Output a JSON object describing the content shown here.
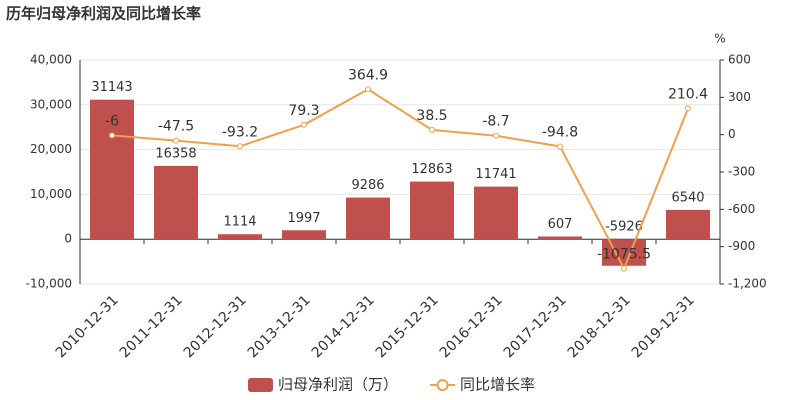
{
  "chart_data": {
    "type": "bar",
    "title": "历年归母净利润及同比增长率",
    "categories": [
      "2010-12-31",
      "2011-12-31",
      "2012-12-31",
      "2013-12-31",
      "2014-12-31",
      "2015-12-31",
      "2016-12-31",
      "2017-12-31",
      "2018-12-31",
      "2019-12-31"
    ],
    "series": [
      {
        "name": "归母净利润（万）",
        "type": "bar",
        "color": "#c0504d",
        "values": [
          31143,
          16358,
          1114,
          1997,
          9286,
          12863,
          11741,
          607,
          -5926,
          6540
        ]
      },
      {
        "name": "同比增长率",
        "type": "line",
        "axis": "y2",
        "color": "#f0a04b",
        "values": [
          -6,
          -47.5,
          -93.2,
          79.3,
          364.9,
          38.5,
          -8.7,
          -94.8,
          -1075.5,
          210.4
        ]
      }
    ],
    "ylim": [
      -10000,
      40000
    ],
    "yticks": [
      {
        "value": -10000,
        "label": "-10,000"
      },
      0,
      {
        "value": 10000,
        "label": "10,000"
      },
      {
        "value": 20000,
        "label": "20,000"
      },
      {
        "value": 30000,
        "label": "30,000"
      },
      {
        "value": 40000,
        "label": "40,000"
      }
    ],
    "y2label": "%",
    "y2lim": [
      -1200,
      600
    ],
    "y2ticks": [
      {
        "value": -1200,
        "label": "-1,200"
      },
      -900,
      -600,
      -300,
      0,
      300,
      600
    ],
    "grid": true
  }
}
